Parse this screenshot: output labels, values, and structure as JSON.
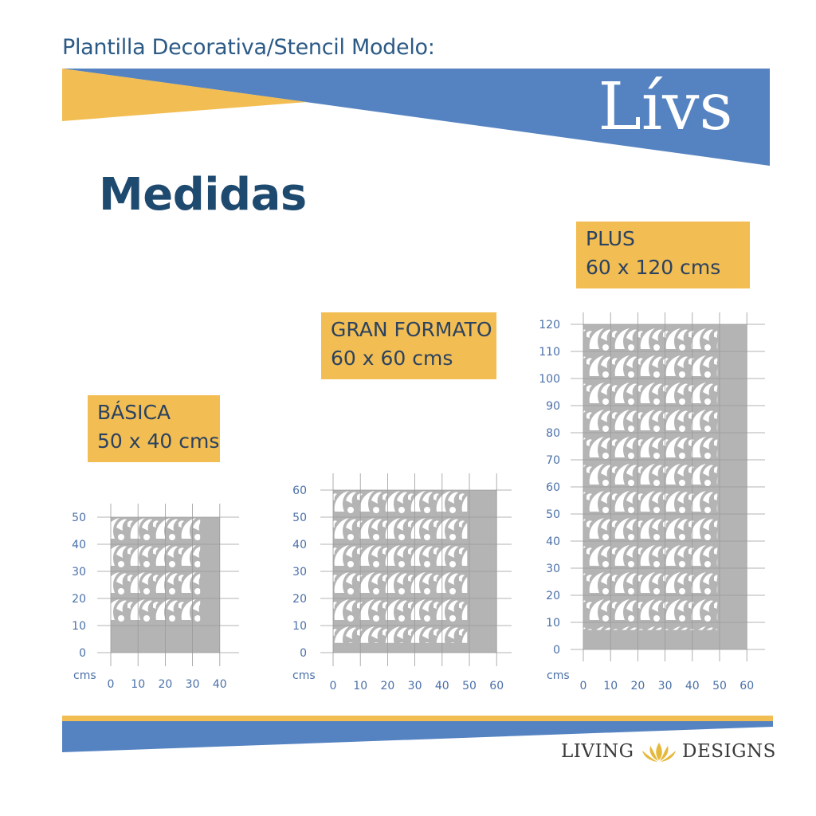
{
  "header": {
    "subtitle": "Plantilla Decorativa/Stencil Modelo:",
    "model_name": "Lívs"
  },
  "section_title": "Medidas",
  "sizes": [
    {
      "name": "BÁSICA",
      "dimensions": "50 x 40 cms",
      "width": 40,
      "height": 50,
      "y_ticks": [
        "0",
        "10",
        "20",
        "30",
        "40",
        "50"
      ],
      "x_ticks": [
        "0",
        "10",
        "20",
        "30",
        "40"
      ],
      "unit": "cms"
    },
    {
      "name": "GRAN FORMATO",
      "dimensions": "60 x 60 cms",
      "width": 60,
      "height": 60,
      "y_ticks": [
        "0",
        "10",
        "20",
        "30",
        "40",
        "50",
        "60"
      ],
      "x_ticks": [
        "0",
        "10",
        "20",
        "30",
        "40",
        "50",
        "60"
      ],
      "unit": "cms"
    },
    {
      "name": "PLUS",
      "dimensions": "60 x 120 cms",
      "width": 60,
      "height": 120,
      "y_ticks": [
        "0",
        "10",
        "20",
        "30",
        "40",
        "50",
        "60",
        "70",
        "80",
        "90",
        "100",
        "110",
        "120"
      ],
      "x_ticks": [
        "0",
        "10",
        "20",
        "30",
        "40",
        "50",
        "60"
      ],
      "unit": "cms"
    }
  ],
  "footer": {
    "brand_left": "LIVING",
    "brand_right": "DESIGNS",
    "brand_icon": "lotus-icon"
  },
  "colors": {
    "blue": "#5583c1",
    "yellow": "#f2bd52",
    "navy": "#1f4a70",
    "stencil_gray": "#b4b4b4"
  }
}
